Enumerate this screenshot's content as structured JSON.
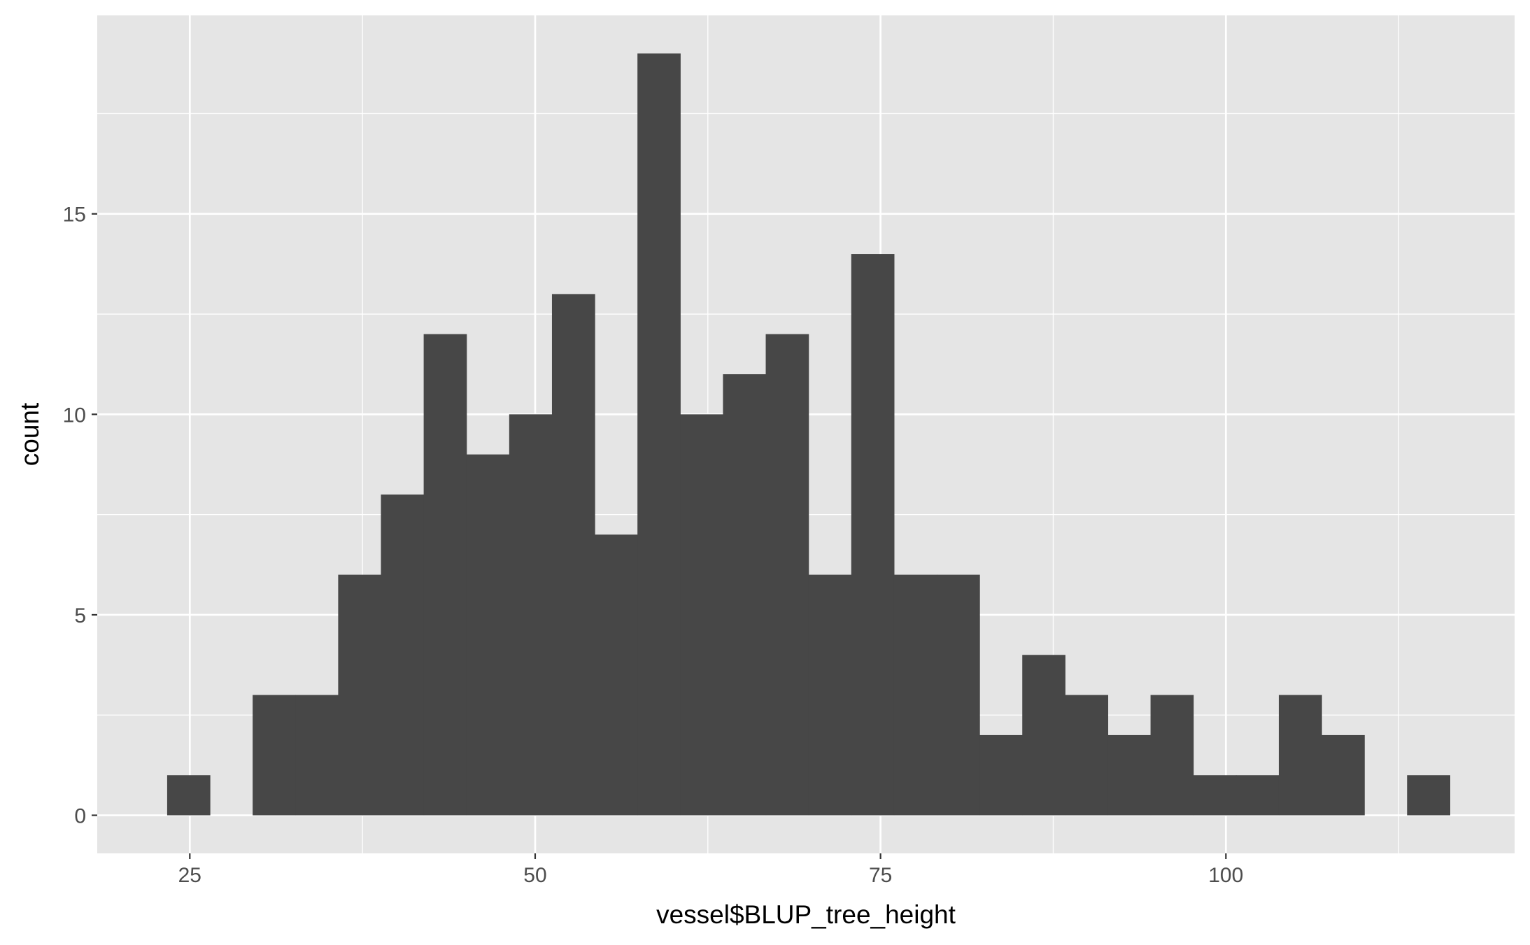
{
  "chart_data": {
    "type": "bar",
    "subtype": "histogram",
    "xlabel": "vessel$BLUP_tree_height",
    "ylabel": "count",
    "xlim": [
      18.3,
      120.9
    ],
    "ylim": [
      -0.95,
      19.95
    ],
    "x_ticks": [
      25,
      50,
      75,
      100
    ],
    "y_ticks": [
      0,
      5,
      10,
      15
    ],
    "x_minor": [
      37.5,
      62.5,
      87.5,
      112.5
    ],
    "y_minor": [
      2.5,
      7.5,
      12.5,
      17.5
    ],
    "bin_width": 3.095,
    "bin_start": 23.36,
    "bin_counts": [
      1,
      0,
      3,
      3,
      6,
      8,
      12,
      9,
      10,
      13,
      7,
      19,
      10,
      11,
      12,
      6,
      14,
      6,
      6,
      2,
      4,
      3,
      2,
      3,
      1,
      1,
      3,
      2,
      0,
      1
    ],
    "grid": true,
    "legend": "none"
  },
  "colors": {
    "panel_background": "#e5e5e5",
    "grid_line": "#ffffff",
    "bar_fill": "#474747",
    "tick_text": "#4d4d4d",
    "tick_mark": "#333333",
    "title_text": "#000000"
  }
}
